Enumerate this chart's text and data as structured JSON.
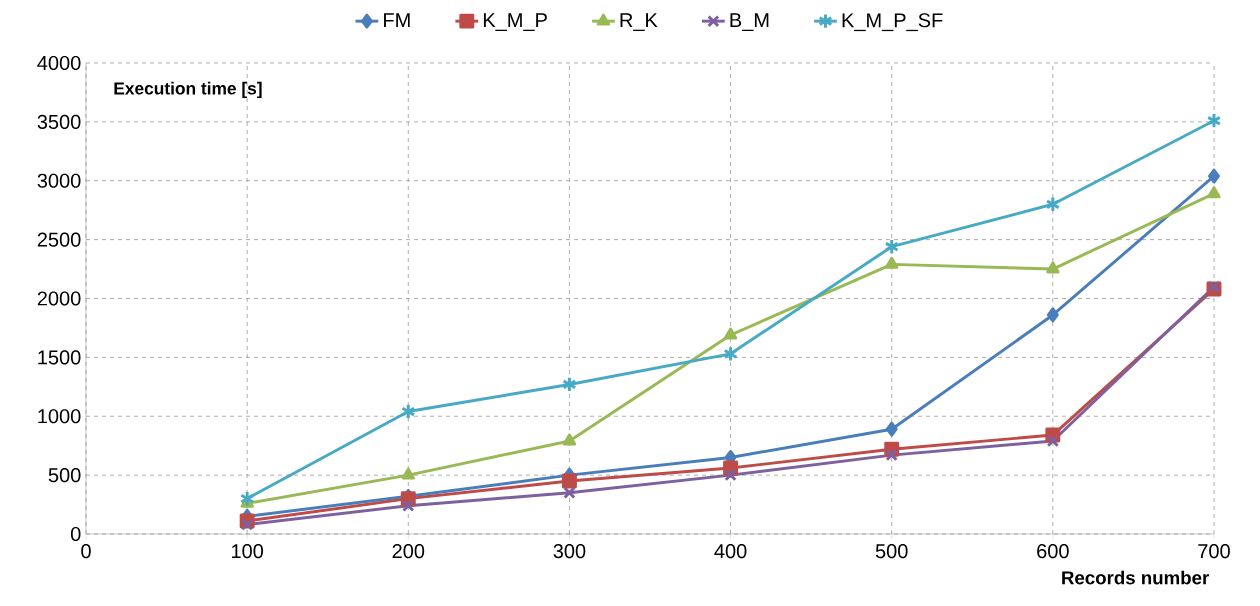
{
  "chart_data": {
    "type": "line",
    "xlabel": "Records number",
    "ylabel": "Execution time [s]",
    "x": [
      100,
      200,
      300,
      400,
      500,
      600,
      700
    ],
    "series": [
      {
        "name": "FM",
        "color": "#4a7ebb",
        "marker": "diamond",
        "values": [
          150,
          320,
          500,
          650,
          890,
          1860,
          3040
        ]
      },
      {
        "name": "K_M_P",
        "color": "#be4b48",
        "marker": "square",
        "values": [
          110,
          300,
          450,
          560,
          720,
          840,
          2080
        ]
      },
      {
        "name": "R_K",
        "color": "#98b954",
        "marker": "triangle",
        "values": [
          260,
          500,
          790,
          1690,
          2290,
          2250,
          2890
        ]
      },
      {
        "name": "B_M",
        "color": "#7d60a0",
        "marker": "cross",
        "values": [
          80,
          240,
          350,
          500,
          670,
          790,
          2100
        ]
      },
      {
        "name": "K_M_P_SF",
        "color": "#46aac5",
        "marker": "cross",
        "values": [
          300,
          1040,
          1270,
          1530,
          2440,
          2800,
          3510
        ]
      }
    ],
    "xlim": [
      0,
      700
    ],
    "xticks": [
      0,
      100,
      200,
      300,
      400,
      500,
      600,
      700
    ],
    "ylim": [
      0,
      4000
    ],
    "yticks": [
      0,
      500,
      1000,
      1500,
      2000,
      2500,
      3000,
      3500,
      4000
    ],
    "grid": true,
    "legend": "top",
    "line_style": "solid"
  }
}
